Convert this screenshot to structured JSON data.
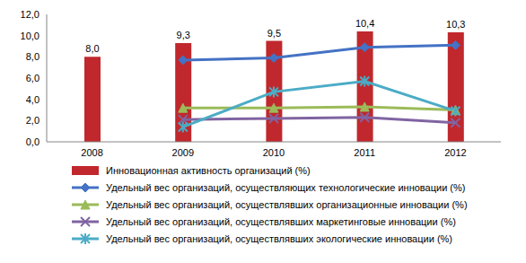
{
  "chart_data": {
    "type": "bar",
    "categories": [
      "2008",
      "2009",
      "2010",
      "2011",
      "2012"
    ],
    "ylim": [
      0,
      12
    ],
    "yticks": [
      {
        "value": 0,
        "label": "0,0"
      },
      {
        "value": 2,
        "label": "2,0"
      },
      {
        "value": 4,
        "label": "4,0"
      },
      {
        "value": 6,
        "label": "6,0"
      },
      {
        "value": 8,
        "label": "8,0"
      },
      {
        "value": 10,
        "label": "10,0"
      },
      {
        "value": 12,
        "label": "12,0"
      }
    ],
    "grid": false,
    "data_labels": true,
    "legend": "bottom",
    "series": [
      {
        "name": "Инновационная активность организаций (%)",
        "type": "bar",
        "color": "#c0282d",
        "values": [
          8.0,
          9.3,
          9.5,
          10.4,
          10.3
        ],
        "value_labels": [
          "8,0",
          "9,3",
          "9,5",
          "10,4",
          "10,3"
        ]
      },
      {
        "name": "Удельный вес организаций, осуществляющих технологические инновации (%)",
        "type": "line",
        "marker": "diamond",
        "color": "#4472c4",
        "values": [
          null,
          7.7,
          7.9,
          8.9,
          9.1
        ]
      },
      {
        "name": "Удельный вес организаций, осуществлявших организационные инновации (%)",
        "type": "line",
        "marker": "triangle",
        "color": "#9bbb59",
        "values": [
          null,
          3.2,
          3.2,
          3.3,
          3.0
        ]
      },
      {
        "name": "Удельный вес организаций, осуществлявших маркетинговые инновации (%)",
        "type": "line",
        "marker": "x",
        "color": "#8064a2",
        "values": [
          null,
          2.1,
          2.2,
          2.3,
          1.8
        ]
      },
      {
        "name": "Удельный вес организаций, осуществлявших экологические инновации (%)",
        "type": "line",
        "marker": "asterisk",
        "color": "#4bacc6",
        "values": [
          null,
          1.4,
          4.7,
          5.7,
          2.9
        ]
      }
    ]
  }
}
